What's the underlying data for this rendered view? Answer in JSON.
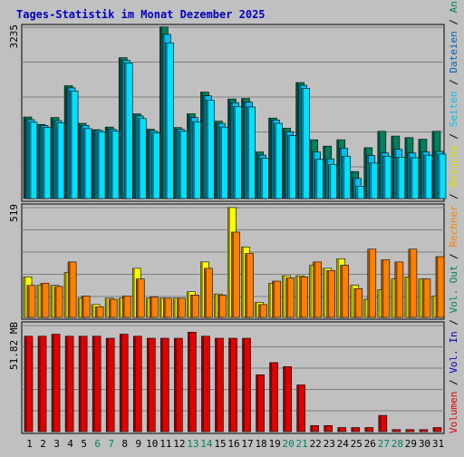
{
  "title": "Tages-Statistik im Monat Dezember 2025",
  "colors": {
    "background": "#c0c0c0",
    "panel": "#c0c0c0",
    "title": "#0000c0",
    "anfragen": "#008060",
    "dateien": "#00c0f0",
    "seiten": "#00e0ff",
    "besuche": "#ffff00",
    "rechner": "#ff8000",
    "volumen": "#e00000",
    "weekend": "#008060",
    "axis": "#000000"
  },
  "chart_data": [
    {
      "type": "bar",
      "title": "Tages-Statistik im Monat Dezember 2025",
      "y_max_label": "3235",
      "ylim": [
        0,
        3235
      ],
      "categories": [
        "1",
        "2",
        "3",
        "4",
        "5",
        "6",
        "7",
        "8",
        "9",
        "10",
        "11",
        "12",
        "13",
        "14",
        "15",
        "16",
        "17",
        "18",
        "19",
        "20",
        "21",
        "22",
        "23",
        "24",
        "25",
        "26",
        "27",
        "28",
        "29",
        "30",
        "31"
      ],
      "weekend_days": [
        "6",
        "7",
        "13",
        "14",
        "20",
        "21",
        "27",
        "28"
      ],
      "series": [
        {
          "name": "Anfragen",
          "color": "#008060",
          "values": [
            1540,
            1400,
            1530,
            2130,
            1420,
            1300,
            1350,
            2660,
            1600,
            1310,
            3240,
            1340,
            1600,
            2010,
            1460,
            1880,
            1890,
            880,
            1520,
            1330,
            2190,
            1110,
            990,
            1110,
            510,
            960,
            1270,
            1180,
            1150,
            1120,
            1270
          ]
        },
        {
          "name": "Dateien",
          "color": "#00c0f0",
          "values": [
            1490,
            1380,
            1470,
            2090,
            1380,
            1290,
            1310,
            2610,
            1560,
            1280,
            3100,
            1310,
            1530,
            1940,
            1420,
            1810,
            1820,
            820,
            1480,
            1260,
            2140,
            880,
            750,
            950,
            380,
            810,
            860,
            930,
            860,
            880,
            890
          ]
        },
        {
          "name": "Seiten",
          "color": "#00e0ff",
          "values": [
            1440,
            1340,
            1430,
            2030,
            1320,
            1260,
            1270,
            2560,
            1510,
            1240,
            2940,
            1270,
            1450,
            1860,
            1350,
            1740,
            1730,
            760,
            1420,
            1190,
            2080,
            740,
            640,
            800,
            230,
            670,
            800,
            780,
            770,
            820,
            840
          ]
        }
      ]
    },
    {
      "type": "bar",
      "y_max_label": "519",
      "ylim": [
        0,
        519
      ],
      "categories": [
        "1",
        "2",
        "3",
        "4",
        "5",
        "6",
        "7",
        "8",
        "9",
        "10",
        "11",
        "12",
        "13",
        "14",
        "15",
        "16",
        "17",
        "18",
        "19",
        "20",
        "21",
        "22",
        "23",
        "24",
        "25",
        "26",
        "27",
        "28",
        "29",
        "30",
        "31"
      ],
      "series": [
        {
          "name": "Besuche",
          "color": "#ffff00",
          "values": [
            190,
            150,
            150,
            210,
            90,
            60,
            90,
            90,
            230,
            90,
            90,
            90,
            120,
            260,
            110,
            515,
            330,
            70,
            160,
            195,
            195,
            245,
            230,
            275,
            150,
            85,
            130,
            180,
            190,
            180,
            100
          ]
        },
        {
          "name": "Rechner",
          "color": "#ff8000",
          "values": [
            150,
            160,
            145,
            260,
            100,
            50,
            85,
            100,
            180,
            95,
            90,
            90,
            105,
            230,
            105,
            400,
            300,
            60,
            170,
            185,
            190,
            260,
            220,
            245,
            135,
            320,
            270,
            260,
            320,
            180,
            285
          ]
        }
      ]
    },
    {
      "type": "bar",
      "y_max_label": "51.82 MB",
      "ylim": [
        0,
        51.82
      ],
      "ylabel": "MB",
      "categories": [
        "1",
        "2",
        "3",
        "4",
        "5",
        "6",
        "7",
        "8",
        "9",
        "10",
        "11",
        "12",
        "13",
        "14",
        "15",
        "16",
        "17",
        "18",
        "19",
        "20",
        "21",
        "22",
        "23",
        "24",
        "25",
        "26",
        "27",
        "28",
        "29",
        "30",
        "31"
      ],
      "series": [
        {
          "name": "Volumen",
          "color": "#e00000",
          "values": [
            47,
            47,
            48,
            47,
            47,
            47,
            46,
            48,
            47,
            46,
            46,
            46,
            49,
            47,
            46,
            46,
            46,
            28,
            34,
            32,
            23,
            3,
            3,
            2,
            2,
            2,
            8,
            1,
            1,
            1,
            2
          ]
        }
      ]
    }
  ],
  "right_legend": [
    {
      "text": "Volumen",
      "color": "#e00000"
    },
    {
      "text": " / ",
      "color": "#000000"
    },
    {
      "text": "Vol. In",
      "color": "#0000c0"
    },
    {
      "text": " / ",
      "color": "#000000"
    },
    {
      "text": "Vol. Out",
      "color": "#008060"
    },
    {
      "text": " / ",
      "color": "#000000"
    },
    {
      "text": "Rechner",
      "color": "#ff8000"
    },
    {
      "text": " / ",
      "color": "#000000"
    },
    {
      "text": "Besuche",
      "color": "#e0e000"
    },
    {
      "text": " / ",
      "color": "#000000"
    },
    {
      "text": "Seiten",
      "color": "#00c0f0"
    },
    {
      "text": " / ",
      "color": "#000000"
    },
    {
      "text": "Dateien",
      "color": "#0060c0"
    },
    {
      "text": " / ",
      "color": "#000000"
    },
    {
      "text": "Anfragen",
      "color": "#008060"
    }
  ]
}
